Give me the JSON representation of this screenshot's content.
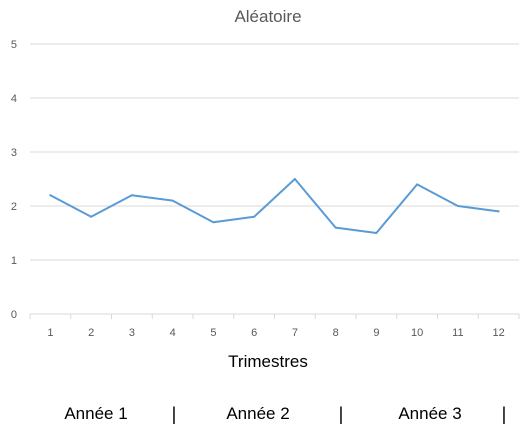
{
  "chart_data": {
    "type": "line",
    "title": "Aléatoire",
    "xlabel": "Trimestres",
    "ylabel": "",
    "categories": [
      "1",
      "2",
      "3",
      "4",
      "5",
      "6",
      "7",
      "8",
      "9",
      "10",
      "11",
      "12"
    ],
    "y_ticks": [
      "0",
      "1",
      "2",
      "3",
      "4",
      "5"
    ],
    "ylim": [
      0,
      5
    ],
    "grid": true,
    "legend": "none",
    "series": [
      {
        "values": [
          2.2,
          1.8,
          2.2,
          2.1,
          1.7,
          1.8,
          2.5,
          1.6,
          1.5,
          2.4,
          2.0,
          1.9
        ],
        "color": "#5B9BD5"
      }
    ],
    "annotations": {
      "years": [
        "Année 1",
        "Année 2",
        "Année 3"
      ],
      "separator": "|"
    }
  },
  "colors": {
    "gridline": "#D9D9D9",
    "axis": "#D9D9D9",
    "line": "#5B9BD5"
  }
}
